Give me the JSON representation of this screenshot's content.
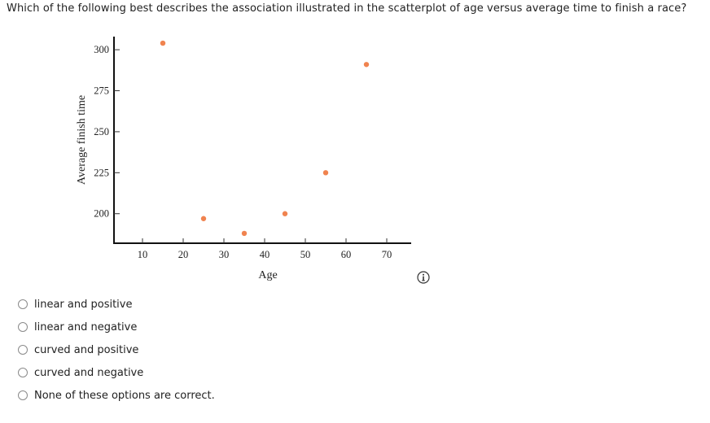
{
  "question": {
    "text": "Which of the following best describes the association illustrated in the scatterplot of age versus average time to finish a race?"
  },
  "chart_data": {
    "type": "scatter",
    "title": "",
    "xlabel": "Age",
    "ylabel": "Average finish time",
    "x_ticks": [
      10,
      20,
      30,
      40,
      50,
      60,
      70
    ],
    "y_ticks": [
      200,
      225,
      250,
      275,
      300
    ],
    "xlim": [
      3,
      76
    ],
    "ylim": [
      182,
      308
    ],
    "grid": false,
    "legend": "none",
    "point_color": "#f0834f",
    "points": [
      {
        "x": 15,
        "y": 304
      },
      {
        "x": 25,
        "y": 197
      },
      {
        "x": 35,
        "y": 188
      },
      {
        "x": 45,
        "y": 200
      },
      {
        "x": 55,
        "y": 225
      },
      {
        "x": 65,
        "y": 291
      }
    ]
  },
  "options": [
    {
      "label": "linear and positive",
      "selected": false
    },
    {
      "label": "linear and negative",
      "selected": false
    },
    {
      "label": "curved and positive",
      "selected": false
    },
    {
      "label": "curved and negative",
      "selected": false
    },
    {
      "label": "None of these options are correct.",
      "selected": false
    }
  ],
  "icons": {
    "info": "info-icon"
  }
}
